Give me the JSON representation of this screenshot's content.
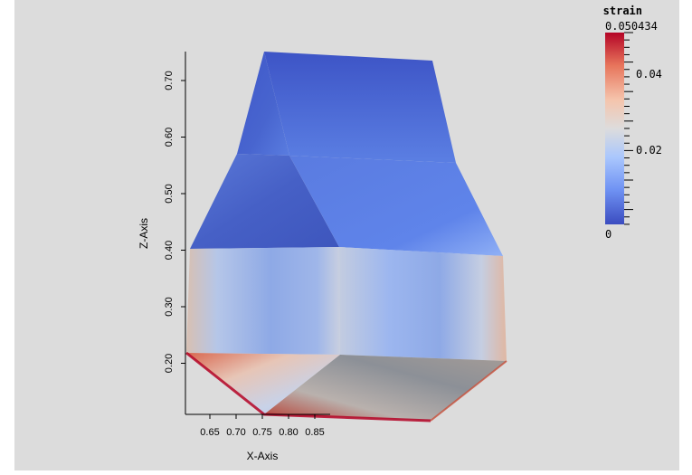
{
  "view": {
    "x_axis_title": "X-Axis",
    "z_axis_title": "Z-Axis",
    "x_ticks": [
      "0.65",
      "0.70",
      "0.75",
      "0.80",
      "0.85"
    ],
    "z_ticks": [
      "0.20",
      "0.30",
      "0.40",
      "0.50",
      "0.60",
      "0.70"
    ]
  },
  "colorbar": {
    "title": "strain",
    "max_label": "0.050434",
    "labels": [
      "0.04",
      "0.02",
      "0"
    ],
    "colormap": [
      "#b40426",
      "#e7745b",
      "#f5c4ac",
      "#dddcdc",
      "#aac7fd",
      "#6f92f3",
      "#3b4cc0"
    ]
  }
}
